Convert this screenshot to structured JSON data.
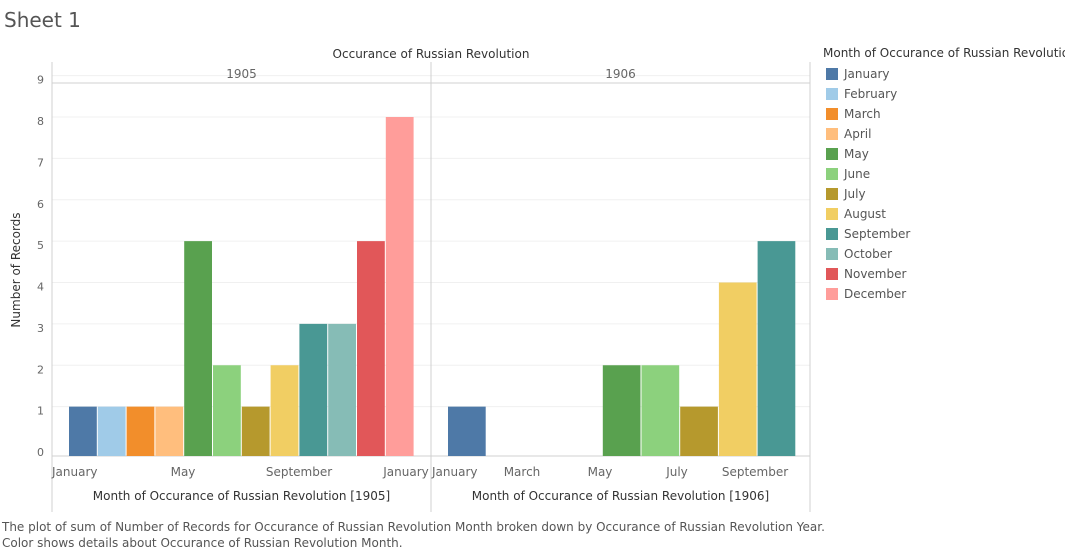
{
  "sheet_title": "Sheet 1",
  "caption": "The plot of sum of Number of Records for Occurance of Russian Revolution Month broken down by Occurance of Russian Revolution Year.  Color shows details about Occurance of Russian Revolution Month.",
  "legend": {
    "title": "Month of Occurance of Russian Revolution",
    "items": [
      {
        "label": "January",
        "color": "#4e79a7"
      },
      {
        "label": "February",
        "color": "#a0cbe8"
      },
      {
        "label": "March",
        "color": "#f28e2b"
      },
      {
        "label": "April",
        "color": "#ffbe7d"
      },
      {
        "label": "May",
        "color": "#59a14f"
      },
      {
        "label": "June",
        "color": "#8cd17d"
      },
      {
        "label": "July",
        "color": "#b6992d"
      },
      {
        "label": "August",
        "color": "#f1ce63"
      },
      {
        "label": "September",
        "color": "#499894"
      },
      {
        "label": "October",
        "color": "#86bcb6"
      },
      {
        "label": "November",
        "color": "#e15759"
      },
      {
        "label": "December",
        "color": "#ff9d9a"
      }
    ]
  },
  "chart_data": {
    "type": "bar",
    "title": "Occurance of Russian Revolution",
    "ylabel": "Number of Records",
    "ylim": [
      0,
      9
    ],
    "yticks": [
      "0",
      "1",
      "2",
      "3",
      "4",
      "5",
      "6",
      "7",
      "8",
      "9"
    ],
    "grid": true,
    "legend_position": "right",
    "panels": [
      {
        "header": "1905",
        "xlabel": "Month of Occurance of Russian Revolution [1905]",
        "xticks": [
          "January",
          "May",
          "September",
          "January"
        ],
        "bars": [
          {
            "month": "January",
            "value": 1
          },
          {
            "month": "February",
            "value": 1
          },
          {
            "month": "March",
            "value": 1
          },
          {
            "month": "April",
            "value": 1
          },
          {
            "month": "May",
            "value": 5
          },
          {
            "month": "June",
            "value": 2
          },
          {
            "month": "July",
            "value": 1
          },
          {
            "month": "August",
            "value": 2
          },
          {
            "month": "September",
            "value": 3
          },
          {
            "month": "October",
            "value": 3
          },
          {
            "month": "November",
            "value": 5
          },
          {
            "month": "December",
            "value": 8
          }
        ]
      },
      {
        "header": "1906",
        "xlabel": "Month of Occurance of Russian Revolution [1906]",
        "xticks": [
          "January",
          "March",
          "May",
          "July",
          "September"
        ],
        "bars": [
          {
            "month": "January",
            "value": 1
          },
          {
            "month": "May",
            "value": 2
          },
          {
            "month": "June",
            "value": 2
          },
          {
            "month": "July",
            "value": 1
          },
          {
            "month": "August",
            "value": 4
          },
          {
            "month": "September",
            "value": 5
          }
        ]
      }
    ]
  }
}
